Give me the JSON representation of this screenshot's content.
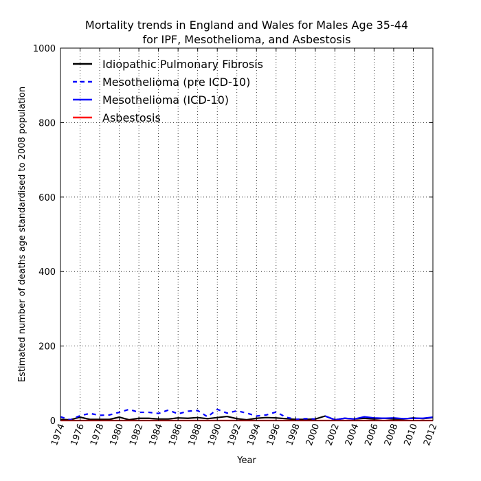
{
  "chart_data": {
    "type": "line",
    "title": "Mortality trends in England and Wales for Males Age 35-44",
    "subtitle": "for IPF, Mesothelioma, and Asbestosis",
    "xlabel": "Year",
    "ylabel": "Estimated number of deaths age standardised to 2008 population",
    "xlim": [
      1974,
      2012
    ],
    "ylim": [
      0,
      1000
    ],
    "x_ticks": [
      "1974",
      "1976",
      "1978",
      "1980",
      "1982",
      "1984",
      "1986",
      "1988",
      "1990",
      "1992",
      "1994",
      "1996",
      "1998",
      "2000",
      "2002",
      "2004",
      "2006",
      "2008",
      "2010",
      "2012"
    ],
    "y_ticks": [
      "0",
      "200",
      "400",
      "600",
      "800",
      "1000"
    ],
    "grid": true,
    "legend_position": "top-left",
    "series": [
      {
        "name": "Idiopathic Pulmonary Fibrosis",
        "color": "#000000",
        "dash": "solid",
        "x": [
          1974,
          1975,
          1976,
          1977,
          1978,
          1979,
          1980,
          1981,
          1982,
          1983,
          1984,
          1985,
          1986,
          1987,
          1988,
          1989,
          1990,
          1991,
          1992,
          1993,
          1994,
          1995,
          1996,
          1997,
          1998,
          1999,
          2000,
          2001,
          2002,
          2003,
          2004,
          2005,
          2006,
          2007,
          2008,
          2009,
          2010,
          2011,
          2012
        ],
        "values": [
          3,
          2,
          9,
          3,
          3,
          3,
          9,
          2,
          6,
          6,
          4,
          4,
          7,
          6,
          8,
          5,
          8,
          11,
          5,
          2,
          6,
          8,
          7,
          5,
          3,
          3,
          4,
          12,
          2,
          6,
          4,
          6,
          4,
          6,
          4,
          4,
          7,
          5,
          8
        ]
      },
      {
        "name": "Mesothelioma (pre ICD-10)",
        "color": "#0000ff",
        "dash": "dashed",
        "x": [
          1974,
          1975,
          1976,
          1977,
          1978,
          1979,
          1980,
          1981,
          1982,
          1983,
          1984,
          1985,
          1986,
          1987,
          1988,
          1989,
          1990,
          1991,
          1992,
          1993,
          1994,
          1995,
          1996,
          1997,
          1998,
          1999,
          2000
        ],
        "values": [
          10,
          2,
          13,
          19,
          14,
          15,
          22,
          30,
          22,
          22,
          19,
          28,
          18,
          25,
          27,
          10,
          30,
          20,
          26,
          20,
          12,
          15,
          23,
          9,
          3,
          5,
          4
        ]
      },
      {
        "name": "Mesothelioma (ICD-10)",
        "color": "#0000ff",
        "dash": "solid",
        "x": [
          2001,
          2002,
          2003,
          2004,
          2005,
          2006,
          2007,
          2008,
          2009,
          2010,
          2011,
          2012
        ],
        "values": [
          12,
          2,
          6,
          4,
          10,
          7,
          6,
          7,
          5,
          6,
          6,
          9
        ]
      },
      {
        "name": "Asbestosis",
        "color": "#ff0000",
        "dash": "solid",
        "x": [
          1974,
          1975,
          1976,
          1977,
          1978,
          1979,
          1980,
          1981,
          1982,
          1983,
          1984,
          1985,
          1986,
          1987,
          1988,
          1989,
          1990,
          1991,
          1992,
          1993,
          1994,
          1995,
          1996,
          1997,
          1998,
          1999,
          2000,
          2001,
          2002,
          2003,
          2004,
          2005,
          2006,
          2007,
          2008,
          2009,
          2010,
          2011,
          2012
        ],
        "values": [
          0,
          0,
          0,
          0,
          0,
          0,
          0,
          0,
          0,
          0,
          0,
          0,
          0,
          0,
          0,
          0,
          0,
          0,
          0,
          0,
          0,
          0,
          0,
          0,
          0,
          0,
          0,
          0,
          0,
          0,
          0,
          0,
          0,
          0,
          0,
          0,
          0,
          0,
          0
        ]
      }
    ]
  }
}
